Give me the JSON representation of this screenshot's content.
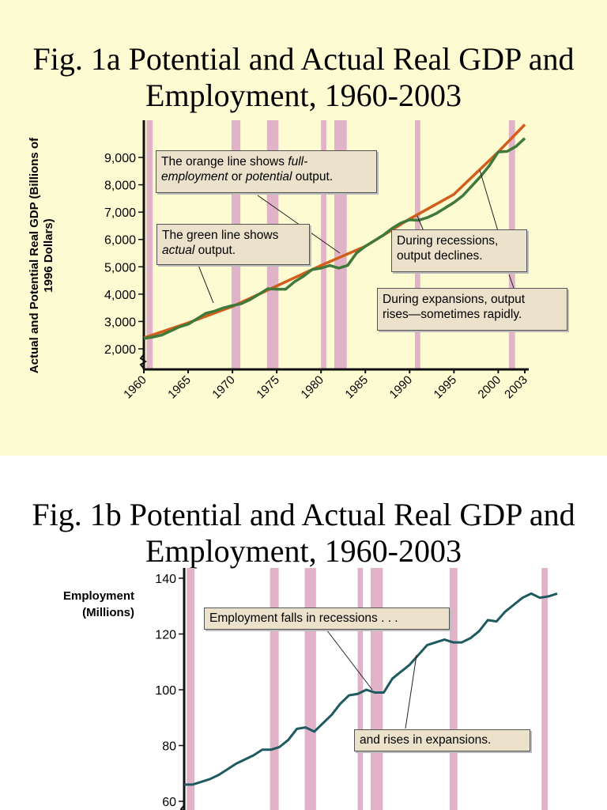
{
  "chart_data": [
    {
      "type": "line",
      "title": "Fig. 1a Potential and Actual Real GDP and Employment, 1960-2003",
      "ylabel": "Actual and Potential Real GDP (Billions of 1996 Dollars)",
      "xlim": [
        1960,
        2003
      ],
      "ylim": [
        2000,
        9000
      ],
      "x_ticks": [
        "1960",
        "1965",
        "1970",
        "1975",
        "1980",
        "1985",
        "1990",
        "1995",
        "2000",
        "2003"
      ],
      "y_ticks": [
        "2,000",
        "3,000",
        "4,000",
        "5,000",
        "6,000",
        "7,000",
        "8,000",
        "9,000"
      ],
      "recessions": [
        [
          1960.3,
          1961.0
        ],
        [
          1969.9,
          1970.9
        ],
        [
          1973.9,
          1975.2
        ],
        [
          1980.0,
          1980.6
        ],
        [
          1981.5,
          1982.9
        ],
        [
          1990.6,
          1991.2
        ],
        [
          2001.2,
          2001.9
        ]
      ],
      "series": [
        {
          "color": "#d35d1b",
          "x": [
            1960,
            1965,
            1970,
            1975,
            1980,
            1985,
            1990,
            1995,
            2000,
            2003
          ],
          "values": [
            2400,
            2950,
            3550,
            4300,
            5050,
            5750,
            6750,
            7650,
            9200,
            10200
          ]
        },
        {
          "color": "#3f7a3a",
          "x": [
            1960,
            1961,
            1962,
            1963,
            1964,
            1965,
            1966,
            1967,
            1968,
            1969,
            1970,
            1971,
            1972,
            1973,
            1974,
            1975,
            1976,
            1977,
            1978,
            1979,
            1980,
            1981,
            1982,
            1983,
            1984,
            1985,
            1986,
            1987,
            1988,
            1989,
            1990,
            1991,
            1992,
            1993,
            1994,
            1995,
            1996,
            1997,
            1998,
            1999,
            2000,
            2001,
            2002,
            2003
          ],
          "values": [
            2380,
            2430,
            2500,
            2650,
            2800,
            2900,
            3100,
            3300,
            3380,
            3500,
            3580,
            3650,
            3800,
            4000,
            4200,
            4180,
            4180,
            4450,
            4650,
            4900,
            4950,
            5050,
            4950,
            5050,
            5500,
            5750,
            5950,
            6150,
            6400,
            6600,
            6720,
            6700,
            6800,
            6950,
            7150,
            7350,
            7600,
            7950,
            8300,
            8700,
            9200,
            9220,
            9400,
            9700
          ]
        }
      ],
      "annotations": [
        "The orange line shows full-employment or potential output.",
        "The green line shows actual output.",
        "During recessions, output declines.",
        "During expansions, output rises—sometimes rapidly."
      ]
    },
    {
      "type": "line",
      "title": "Fig. 1b Potential and Actual Real GDP and Employment, 1960-2003",
      "ylabel": "Employment (Millions)",
      "xlim": [
        1960,
        2003
      ],
      "ylim": [
        60,
        140
      ],
      "y_ticks": [
        "60",
        "80",
        "100",
        "120",
        "140"
      ],
      "recessions": [
        [
          1960.3,
          1961.2
        ],
        [
          1969.9,
          1970.9
        ],
        [
          1973.9,
          1975.2
        ],
        [
          1980.0,
          1980.6
        ],
        [
          1981.5,
          1982.9
        ],
        [
          1990.6,
          1991.5
        ],
        [
          2001.2,
          2001.9
        ]
      ],
      "series": [
        {
          "color": "#1f5a60",
          "x": [
            1960,
            1961,
            1962,
            1963,
            1964,
            1965,
            1966,
            1967,
            1968,
            1969,
            1970,
            1971,
            1972,
            1973,
            1974,
            1975,
            1976,
            1977,
            1978,
            1979,
            1980,
            1981,
            1982,
            1983,
            1984,
            1985,
            1986,
            1987,
            1988,
            1989,
            1990,
            1991,
            1992,
            1993,
            1994,
            1995,
            1996,
            1997,
            1998,
            1999,
            2000,
            2001,
            2002,
            2003
          ],
          "values": [
            66,
            66,
            67,
            68,
            69.5,
            71.5,
            73.5,
            75,
            76.5,
            78.5,
            78.5,
            79.5,
            82,
            86,
            86.5,
            85,
            88,
            91,
            95,
            98,
            98.5,
            100,
            99,
            99,
            104,
            106.5,
            109,
            112.5,
            116,
            117,
            118,
            117,
            117,
            118.5,
            121,
            125,
            124.5,
            128,
            130.5,
            133,
            134.5,
            133,
            133.5,
            134.5
          ]
        }
      ],
      "annotations": [
        "Employment falls in recessions . . .",
        "and rises in expansions."
      ]
    }
  ]
}
